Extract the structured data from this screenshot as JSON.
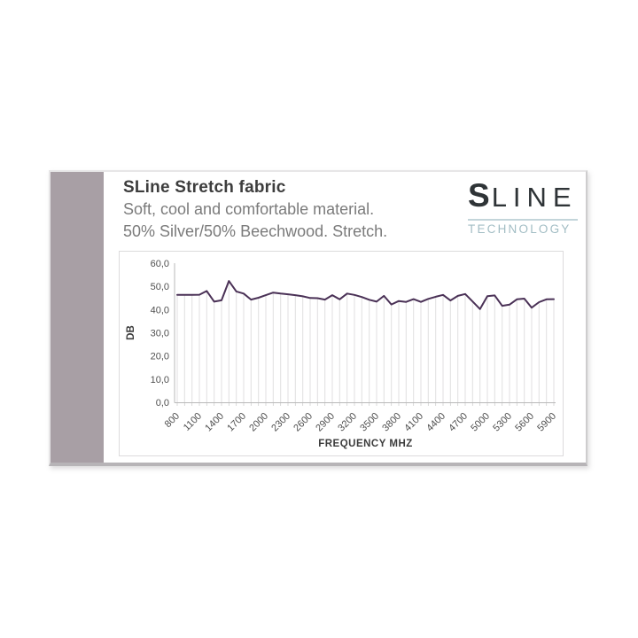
{
  "card": {
    "title": "SLine Stretch fabric",
    "subtitle_line1": "Soft, cool and comfortable material.",
    "subtitle_line2": "50% Silver/50% Beechwood. Stretch.",
    "logo": {
      "s": "S",
      "line": "LINE",
      "technology": "TECHNOLOGY"
    }
  },
  "colors": {
    "strip_mauve": "#a89fa5",
    "title_text": "#3d3d3d",
    "subtitle_text": "#7b7b7b",
    "logo_dark": "#2f3437",
    "logo_teal": "#a2bdc4",
    "logo_rule": "#c3d5da",
    "line_purple": "#4a3156",
    "drop_line_gray": "#e0dfe0",
    "axis_line_gray": "#b9b9b9",
    "axis_text_gray": "#4f4f4f"
  },
  "chart_data": {
    "type": "line",
    "title": "",
    "xlabel": "FREQUENCY MHZ",
    "ylabel": "DB",
    "legend": "none",
    "grid": "vertical-drop-lines",
    "ylim": [
      0,
      60
    ],
    "y_ticks": [
      0,
      10,
      20,
      30,
      40,
      50,
      60
    ],
    "y_tick_labels": [
      "0,0",
      "10,0",
      "20,0",
      "30,0",
      "40,0",
      "50,0",
      "60,0"
    ],
    "x_ticks": [
      800,
      1100,
      1400,
      1700,
      2000,
      2300,
      2600,
      2900,
      3200,
      3500,
      3800,
      4100,
      4400,
      4700,
      5000,
      5300,
      5600,
      5900
    ],
    "x": [
      800,
      900,
      1000,
      1100,
      1200,
      1300,
      1400,
      1500,
      1600,
      1700,
      1800,
      1900,
      2000,
      2100,
      2200,
      2300,
      2400,
      2500,
      2600,
      2700,
      2800,
      2900,
      3000,
      3100,
      3200,
      3300,
      3400,
      3500,
      3600,
      3700,
      3800,
      3900,
      4000,
      4100,
      4200,
      4300,
      4400,
      4500,
      4600,
      4700,
      4800,
      4900,
      5000,
      5100,
      5200,
      5300,
      5400,
      5500,
      5600,
      5700,
      5800,
      5900
    ],
    "values": [
      46.3,
      46.3,
      46.3,
      46.4,
      48.0,
      43.4,
      44.0,
      52.3,
      47.8,
      46.9,
      44.3,
      45.1,
      46.2,
      47.3,
      46.9,
      46.6,
      46.2,
      45.7,
      45.0,
      44.9,
      44.3,
      46.2,
      44.4,
      46.9,
      46.3,
      45.4,
      44.2,
      43.4,
      45.9,
      42.2,
      43.7,
      43.3,
      44.5,
      43.3,
      44.6,
      45.5,
      46.3,
      43.9,
      45.9,
      46.7,
      43.5,
      40.2,
      45.8,
      46.1,
      41.6,
      42.1,
      44.4,
      44.7,
      40.8,
      43.2,
      44.4,
      44.5
    ],
    "series_color": "#4a3156"
  }
}
